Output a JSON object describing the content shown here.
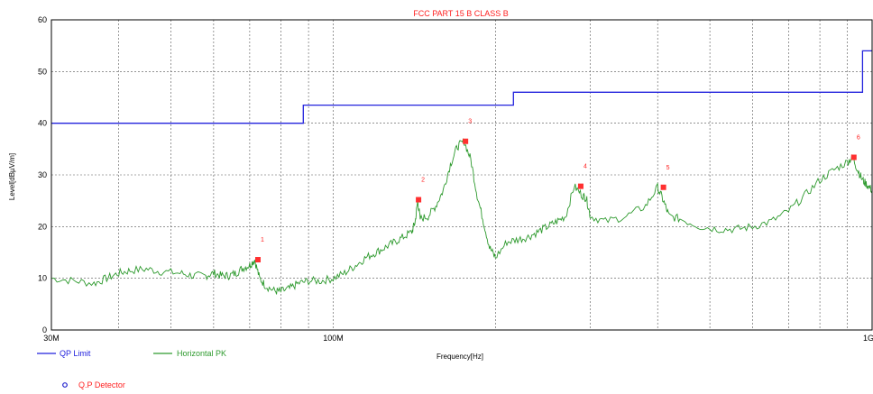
{
  "chart_data": {
    "type": "line",
    "title": "FCC PART 15 B CLASS B",
    "xlabel": "Frequency[Hz]",
    "ylabel": "Level[dBµV/m]",
    "x_scale": "log",
    "xlim": [
      30,
      1000
    ],
    "ylim": [
      0,
      60
    ],
    "x_unit_scale": "MHz",
    "x_tick_labels": [
      {
        "value": 30,
        "label": "30M"
      },
      {
        "value": 100,
        "label": "100M"
      },
      {
        "value": 1000,
        "label": "1G"
      }
    ],
    "y_ticks": [
      0,
      10,
      20,
      30,
      40,
      50,
      60
    ],
    "grid": true,
    "legend_position": "bottom-left",
    "colors": {
      "limit": "#2222dd",
      "trace": "#2e9a2e",
      "marker": "#ff3030",
      "detector": "#2020cc"
    },
    "series": [
      {
        "name": "QP Limit",
        "kind": "step",
        "x": [
          30,
          88,
          88,
          216,
          216,
          960,
          960,
          1000
        ],
        "y": [
          40,
          40,
          43.5,
          43.5,
          46,
          46,
          54,
          54
        ]
      },
      {
        "name": "Horizontal PK",
        "x": [
          30,
          33,
          36,
          38,
          40,
          42,
          45,
          48,
          52,
          55,
          58,
          60,
          62,
          64,
          66,
          68,
          70,
          71.5,
          73,
          75,
          78,
          80,
          83,
          86,
          90,
          95,
          100,
          105,
          110,
          115,
          120,
          125,
          130,
          135,
          140,
          142,
          143.5,
          145,
          150,
          155,
          160,
          165,
          170,
          175,
          180,
          185,
          190,
          195,
          200,
          210,
          220,
          230,
          240,
          250,
          260,
          270,
          280,
          290,
          295,
          300,
          320,
          350,
          380,
          400,
          410,
          420,
          440,
          480,
          520,
          560,
          600,
          650,
          700,
          750,
          800,
          850,
          900,
          920,
          940,
          960,
          980,
          1000
        ],
        "y": [
          10,
          9.5,
          9,
          10,
          11,
          11.5,
          11.8,
          11.3,
          11,
          10.5,
          10.5,
          11,
          10.5,
          10.5,
          11,
          12,
          12.5,
          13.6,
          10,
          8.5,
          7.5,
          7.5,
          8,
          9,
          9.5,
          9.5,
          10,
          11,
          12.5,
          14,
          15,
          16,
          17,
          18,
          19,
          21,
          25,
          21.5,
          22,
          24,
          27,
          32,
          35.5,
          36.5,
          33,
          26,
          21,
          16,
          14,
          17,
          17.5,
          18,
          19,
          20,
          21,
          22,
          27.8,
          26,
          25.5,
          22,
          21,
          22,
          24,
          27.6,
          25,
          22,
          21.5,
          20,
          19.5,
          19.5,
          20,
          21,
          23,
          26,
          29,
          31,
          32.5,
          33.4,
          31,
          29,
          28,
          27
        ]
      }
    ],
    "markers": [
      {
        "label": "1",
        "x": 72.5,
        "y": 13.6
      },
      {
        "label": "2",
        "x": 144,
        "y": 25.2
      },
      {
        "label": "3",
        "x": 176,
        "y": 36.5
      },
      {
        "label": "4",
        "x": 288,
        "y": 27.8
      },
      {
        "label": "5",
        "x": 410,
        "y": 27.6
      },
      {
        "label": "6",
        "x": 925,
        "y": 33.4
      }
    ],
    "legend": {
      "limit_label": "QP Limit",
      "trace_label": "Horizontal PK",
      "detector_label": "Q.P Detector"
    }
  }
}
